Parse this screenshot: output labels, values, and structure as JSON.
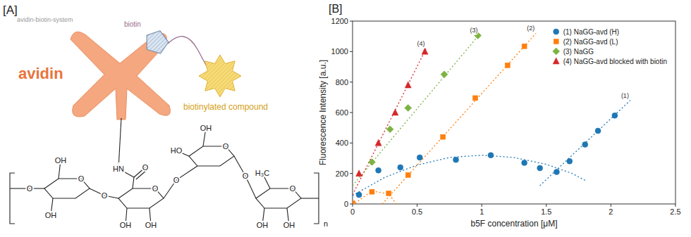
{
  "figure": {
    "panels": [
      "[A]",
      "[B]"
    ]
  },
  "diagram": {
    "caption": "avidin-biotin-system",
    "avidin": "avidin",
    "biotin": "biotin",
    "compound": "biotinylated compound",
    "structure_labels": [
      "O",
      "OH",
      "O",
      "OH",
      "O",
      "HN",
      "O",
      "O",
      "OH",
      "OH",
      "O",
      "OH",
      "O",
      "HO",
      "O",
      "H₃C",
      "O",
      "OH",
      "OH",
      "n"
    ]
  },
  "chart_data": {
    "type": "scatter",
    "x_label": "b5F concentration [μM]",
    "y_label": "Fluorescence Intensity [a.u.]",
    "xlim": [
      0,
      2.5
    ],
    "xticks": [
      0,
      0.5,
      1,
      1.5,
      2,
      2.5
    ],
    "ylim": [
      0,
      1200
    ],
    "yticks": [
      0,
      200,
      400,
      600,
      800,
      1000,
      1200
    ],
    "grid": false,
    "legend": "upper right",
    "series": [
      {
        "name": "(1) NaGG-avd (H)",
        "type": "scatter",
        "marker": "circle",
        "color": "#1f77b4",
        "x": [
          0.05,
          0.2,
          0.37,
          0.52,
          0.8,
          1.07,
          1.33,
          1.45,
          1.58,
          1.68,
          1.8,
          1.9,
          2.03
        ],
        "values": [
          60,
          220,
          240,
          305,
          290,
          320,
          270,
          235,
          210,
          280,
          390,
          480,
          580
        ]
      },
      {
        "name": "(2) NaGG-avd (L)",
        "type": "scatter",
        "marker": "square",
        "color": "#ff7f0e",
        "x": [
          0,
          0.15,
          0.28,
          0.43,
          0.7,
          0.95,
          1.2,
          1.33
        ],
        "values": [
          5,
          80,
          70,
          190,
          440,
          695,
          910,
          1035
        ]
      },
      {
        "name": "(3) NaGG",
        "type": "scatter",
        "marker": "diamond",
        "color": "#7cb342",
        "x": [
          0.15,
          0.29,
          0.43,
          0.71,
          0.97
        ],
        "values": [
          275,
          490,
          630,
          850,
          1105
        ]
      },
      {
        "name": "(4) NaGG-avd blocked with biotin",
        "type": "scatter",
        "marker": "triangle",
        "color": "#d62728",
        "x": [
          0.05,
          0.2,
          0.33,
          0.43,
          0.56
        ],
        "values": [
          200,
          400,
          600,
          780,
          1000
        ]
      },
      {
        "type": "line",
        "line_style": "dotted",
        "color": "#1f77b4",
        "x": [
          0,
          0.25,
          0.5,
          0.75,
          1.0,
          1.25,
          1.5,
          1.7,
          1.8
        ],
        "values": [
          55,
          175,
          255,
          305,
          320,
          305,
          260,
          200,
          155
        ]
      },
      {
        "type": "line",
        "line_style": "dotted",
        "color": "#1f77b4",
        "label": "(1)",
        "x": [
          1.45,
          2.15
        ],
        "values": [
          120,
          680
        ]
      },
      {
        "type": "line",
        "line_style": "dotted",
        "color": "#ff7f0e",
        "x": [
          0.02,
          0.15,
          0.28,
          0.34
        ],
        "values": [
          5,
          85,
          65,
          0
        ]
      },
      {
        "type": "line",
        "line_style": "dotted",
        "color": "#ff7f0e",
        "label": "(2)",
        "x": [
          0.23,
          1.42
        ],
        "values": [
          0,
          1120
        ]
      },
      {
        "type": "line",
        "line_style": "dotted",
        "color": "#7cb342",
        "label": "(3)",
        "x": [
          0,
          0.98
        ],
        "values": [
          120,
          1110
        ]
      },
      {
        "type": "line",
        "line_style": "dotted",
        "color": "#d62728",
        "label": "(4)",
        "x": [
          0,
          0.57
        ],
        "values": [
          60,
          1020
        ]
      }
    ]
  }
}
